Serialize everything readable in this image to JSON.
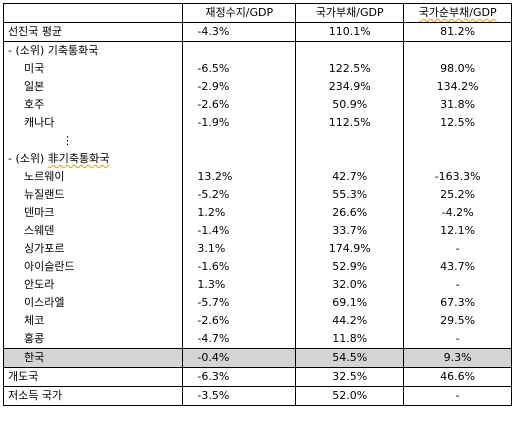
{
  "header": {
    "corner": "",
    "col1": "재정수지/GDP",
    "col2": "국가부채/GDP",
    "col3": "국가순부채/GDP"
  },
  "advanced_average": {
    "label": "선진국 평균",
    "v1": "-4.3%",
    "v2": "110.1%",
    "v3": "81.2%"
  },
  "reserve_group": {
    "label_prefix": "- (소위) ",
    "label_main": "기축통화국",
    "rows": [
      {
        "label": "미국",
        "v1": "-6.5%",
        "v2": "122.5%",
        "v3": "98.0%"
      },
      {
        "label": "일본",
        "v1": "-2.9%",
        "v2": "234.9%",
        "v3": "134.2%"
      },
      {
        "label": "호주",
        "v1": "-2.6%",
        "v2": "50.9%",
        "v3": "31.8%"
      },
      {
        "label": "캐나다",
        "v1": "-1.9%",
        "v2": "112.5%",
        "v3": "12.5%"
      }
    ],
    "ellipsis": "⋮"
  },
  "non_reserve_group": {
    "label_prefix": "- (소위) ",
    "label_main": "非기축통화국",
    "rows": [
      {
        "label": "노르웨이",
        "v1": "13.2%",
        "v2": "42.7%",
        "v3": "-163.3%"
      },
      {
        "label": "뉴질랜드",
        "v1": "-5.2%",
        "v2": "55.3%",
        "v3": "25.2%"
      },
      {
        "label": "덴마크",
        "v1": "1.2%",
        "v2": "26.6%",
        "v3": "-4.2%"
      },
      {
        "label": "스웨덴",
        "v1": "-1.4%",
        "v2": "33.7%",
        "v3": "12.1%"
      },
      {
        "label": "싱가포르",
        "v1": "3.1%",
        "v2": "174.9%",
        "v3": "-"
      },
      {
        "label": "아이슬란드",
        "v1": "-1.6%",
        "v2": "52.9%",
        "v3": "43.7%"
      },
      {
        "label": "안도라",
        "v1": "1.3%",
        "v2": "32.0%",
        "v3": "-"
      },
      {
        "label": "이스라엘",
        "v1": "-5.7%",
        "v2": "69.1%",
        "v3": "67.3%"
      },
      {
        "label": "체코",
        "v1": "-2.6%",
        "v2": "44.2%",
        "v3": "29.5%"
      },
      {
        "label": "홍콩",
        "v1": "-4.7%",
        "v2": "11.8%",
        "v3": "-"
      }
    ]
  },
  "korea": {
    "label": "한국",
    "v1": "-0.4%",
    "v2": "54.5%",
    "v3": "9.3%"
  },
  "developing": {
    "label": "개도국",
    "v1": "-6.3%",
    "v2": "32.5%",
    "v3": "46.6%"
  },
  "low_income": {
    "label": "저소득 국가",
    "v1": "-3.5%",
    "v2": "52.0%",
    "v3": "-"
  },
  "colors": {
    "highlight": "#d4d4d4",
    "squiggle": "#e0a000",
    "border": "#000000"
  }
}
